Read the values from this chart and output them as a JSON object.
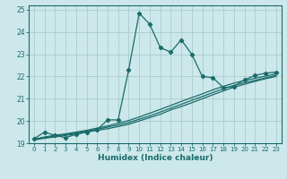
{
  "xlabel": "Humidex (Indice chaleur)",
  "xlim": [
    -0.5,
    23.5
  ],
  "ylim": [
    19.0,
    25.2
  ],
  "yticks": [
    19,
    20,
    21,
    22,
    23,
    24,
    25
  ],
  "xticks": [
    0,
    1,
    2,
    3,
    4,
    5,
    6,
    7,
    8,
    9,
    10,
    11,
    12,
    13,
    14,
    15,
    16,
    17,
    18,
    19,
    20,
    21,
    22,
    23
  ],
  "bg_color": "#cce8ea",
  "grid_color": "#aacccc",
  "line_color": "#1a6b6b",
  "line1_x": [
    0,
    1,
    2,
    3,
    4,
    5,
    6,
    7,
    8,
    9,
    10,
    11,
    12,
    13,
    14,
    15,
    16,
    17,
    18,
    19,
    20,
    21,
    22,
    23
  ],
  "line1_y": [
    19.2,
    19.5,
    19.35,
    19.25,
    19.4,
    19.5,
    19.6,
    20.05,
    20.05,
    22.3,
    24.85,
    24.35,
    23.3,
    23.1,
    23.65,
    23.0,
    22.0,
    21.95,
    21.5,
    21.55,
    21.85,
    22.05,
    22.15,
    22.2
  ],
  "line2_x": [
    0,
    1,
    2,
    3,
    4,
    5,
    6,
    7,
    8,
    9,
    10,
    11,
    12,
    13,
    14,
    15,
    16,
    17,
    18,
    19,
    20,
    21,
    22,
    23
  ],
  "line2_y": [
    19.15,
    19.22,
    19.28,
    19.35,
    19.42,
    19.5,
    19.58,
    19.65,
    19.75,
    19.85,
    20.0,
    20.15,
    20.3,
    20.5,
    20.65,
    20.82,
    21.0,
    21.18,
    21.35,
    21.52,
    21.65,
    21.78,
    21.9,
    22.0
  ],
  "line3_x": [
    0,
    1,
    2,
    3,
    4,
    5,
    6,
    7,
    8,
    9,
    10,
    11,
    12,
    13,
    14,
    15,
    16,
    17,
    18,
    19,
    20,
    21,
    22,
    23
  ],
  "line3_y": [
    19.18,
    19.25,
    19.32,
    19.38,
    19.46,
    19.54,
    19.63,
    19.72,
    19.82,
    19.93,
    20.08,
    20.23,
    20.4,
    20.58,
    20.75,
    20.93,
    21.1,
    21.28,
    21.45,
    21.6,
    21.72,
    21.83,
    21.94,
    22.05
  ],
  "line4_x": [
    0,
    1,
    2,
    3,
    4,
    5,
    6,
    7,
    8,
    9,
    10,
    11,
    12,
    13,
    14,
    15,
    16,
    17,
    18,
    19,
    20,
    21,
    22,
    23
  ],
  "line4_y": [
    19.18,
    19.28,
    19.36,
    19.42,
    19.5,
    19.58,
    19.68,
    19.78,
    19.9,
    20.02,
    20.18,
    20.35,
    20.52,
    20.7,
    20.88,
    21.05,
    21.22,
    21.4,
    21.56,
    21.7,
    21.82,
    21.92,
    22.02,
    22.12
  ]
}
